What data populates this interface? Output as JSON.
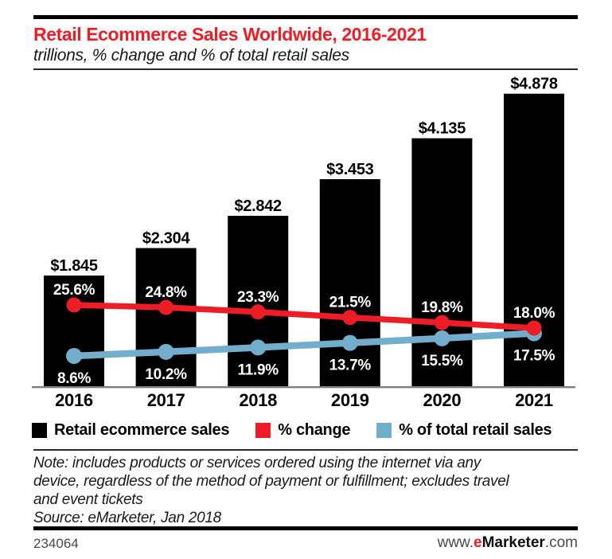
{
  "colors": {
    "bar_black": "#000000",
    "accent_red": "#ee1c25",
    "line_blue": "#72aecb",
    "axis_gray": "#7f7f7f"
  },
  "header": {
    "title": "Retail Ecommerce Sales Worldwide, 2016-2021",
    "subtitle": "trillions, % change and % of total retail sales"
  },
  "chart_data": {
    "type": "bar",
    "title": "Retail Ecommerce Sales Worldwide, 2016-2021",
    "subtitle": "trillions, % change and % of total retail sales",
    "categories": [
      "2016",
      "2017",
      "2018",
      "2019",
      "2020",
      "2021"
    ],
    "grid": false,
    "legend_position": "bottom",
    "series": [
      {
        "name": "Retail ecommerce sales",
        "type": "bar",
        "unit": "trillions USD",
        "color": "#000000",
        "values": [
          1.845,
          2.304,
          2.842,
          3.453,
          4.135,
          4.878
        ],
        "labels": [
          "$1.845",
          "$2.304",
          "$2.842",
          "$3.453",
          "$4.135",
          "$4.878"
        ]
      },
      {
        "name": "% change",
        "type": "line",
        "unit": "percent",
        "color": "#ee1c25",
        "values": [
          25.6,
          24.8,
          23.3,
          21.5,
          19.8,
          18.0
        ],
        "labels": [
          "25.6%",
          "24.8%",
          "23.3%",
          "21.5%",
          "19.8%",
          "18.0%"
        ]
      },
      {
        "name": "% of total retail sales",
        "type": "line",
        "unit": "percent",
        "color": "#72aecb",
        "values": [
          8.6,
          10.2,
          11.9,
          13.7,
          15.5,
          17.5
        ],
        "labels": [
          "8.6%",
          "10.2%",
          "11.9%",
          "13.7%",
          "15.5%",
          "17.5%"
        ]
      }
    ]
  },
  "legend": {
    "items": [
      {
        "label": "Retail ecommerce sales",
        "color": "#000000"
      },
      {
        "label": "% change",
        "color": "#ee1c25"
      },
      {
        "label": "% of total retail sales",
        "color": "#72aecb"
      }
    ]
  },
  "note": {
    "lines": [
      "Note: includes products or services ordered using the internet via any",
      "device, regardless of the method of payment or fulfillment; excludes travel",
      "and event tickets"
    ],
    "source": "Source: eMarketer, Jan 2018"
  },
  "footer": {
    "chart_id": "234064",
    "url_www": "www.",
    "url_e": "e",
    "url_marketer": "Marketer",
    "url_com": ".com"
  }
}
